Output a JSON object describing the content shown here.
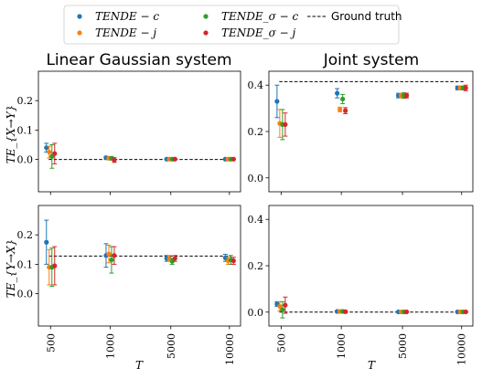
{
  "legend": {
    "entries": [
      {
        "label": "TENDE − c",
        "color": "#1f77b4",
        "marker": "dot"
      },
      {
        "label": "TENDE − j",
        "color": "#ff7f0e",
        "marker": "dot"
      },
      {
        "label": "TENDE_σ − c",
        "color": "#2ca02c",
        "marker": "dot"
      },
      {
        "label": "TENDE_σ − j",
        "color": "#d62728",
        "marker": "dot"
      },
      {
        "label": "Ground truth",
        "color": "#000000",
        "marker": "dashed-line"
      }
    ]
  },
  "xlabel": "T",
  "chart_data": [
    {
      "type": "scatter",
      "title": "Linear Gaussian system",
      "ylabel": "TE_{X→Y}",
      "categories": [
        "500",
        "1000",
        "5000",
        "10000"
      ],
      "ylim": [
        -0.11,
        0.3
      ],
      "yticks": [
        0.0,
        0.1,
        0.2
      ],
      "ground_truth": 0.0,
      "series": [
        {
          "name": "TENDE − c",
          "values": [
            0.04,
            0.006,
            0.001,
            0.001
          ],
          "err": [
            0.015,
            0.004,
            0.002,
            0.002
          ]
        },
        {
          "name": "TENDE − j",
          "values": [
            0.025,
            0.004,
            0.001,
            0.001
          ],
          "err": [
            0.02,
            0.004,
            0.002,
            0.002
          ]
        },
        {
          "name": "TENDE_σ − c",
          "values": [
            0.01,
            0.004,
            0.001,
            0.001
          ],
          "err": [
            0.04,
            0.006,
            0.002,
            0.002
          ]
        },
        {
          "name": "TENDE_σ − j",
          "values": [
            0.02,
            -0.002,
            0.001,
            0.001
          ],
          "err": [
            0.035,
            0.008,
            0.002,
            0.002
          ]
        }
      ]
    },
    {
      "type": "scatter",
      "title": "Joint system",
      "ylabel": "",
      "categories": [
        "500",
        "1000",
        "5000",
        "10000"
      ],
      "ylim": [
        -0.06,
        0.46
      ],
      "yticks": [
        0.0,
        0.2,
        0.4
      ],
      "ground_truth": 0.415,
      "series": [
        {
          "name": "TENDE − c",
          "values": [
            0.33,
            0.365,
            0.355,
            0.388
          ],
          "err": [
            0.07,
            0.02,
            0.01,
            0.008
          ]
        },
        {
          "name": "TENDE − j",
          "values": [
            0.235,
            0.295,
            0.355,
            0.388
          ],
          "err": [
            0.06,
            0.01,
            0.01,
            0.008
          ]
        },
        {
          "name": "TENDE_σ − c",
          "values": [
            0.23,
            0.34,
            0.355,
            0.388
          ],
          "err": [
            0.065,
            0.02,
            0.012,
            0.008
          ]
        },
        {
          "name": "TENDE_σ − j",
          "values": [
            0.23,
            0.29,
            0.355,
            0.388
          ],
          "err": [
            0.05,
            0.013,
            0.01,
            0.012
          ]
        }
      ]
    },
    {
      "type": "scatter",
      "title": "",
      "ylabel": "TE_{Y→X}",
      "categories": [
        "500",
        "1000",
        "5000",
        "10000"
      ],
      "ylim": [
        -0.11,
        0.3
      ],
      "yticks": [
        0.0,
        0.1,
        0.2
      ],
      "ground_truth": 0.128,
      "series": [
        {
          "name": "TENDE − c",
          "values": [
            0.175,
            0.13,
            0.12,
            0.122
          ],
          "err": [
            0.075,
            0.04,
            0.01,
            0.012
          ]
        },
        {
          "name": "TENDE − j",
          "values": [
            0.09,
            0.135,
            0.12,
            0.112
          ],
          "err": [
            0.06,
            0.03,
            0.01,
            0.012
          ]
        },
        {
          "name": "TENDE_σ − c",
          "values": [
            0.09,
            0.115,
            0.11,
            0.115
          ],
          "err": [
            0.065,
            0.045,
            0.01,
            0.015
          ]
        },
        {
          "name": "TENDE_σ − j",
          "values": [
            0.095,
            0.13,
            0.12,
            0.112
          ],
          "err": [
            0.065,
            0.03,
            0.01,
            0.012
          ]
        }
      ]
    },
    {
      "type": "scatter",
      "title": "",
      "ylabel": "",
      "categories": [
        "500",
        "1000",
        "5000",
        "10000"
      ],
      "ylim": [
        -0.06,
        0.46
      ],
      "yticks": [
        0.0,
        0.2,
        0.4
      ],
      "ground_truth": 0.0,
      "series": [
        {
          "name": "TENDE − c",
          "values": [
            0.035,
            0.003,
            0.001,
            0.001
          ],
          "err": [
            0.01,
            0.004,
            0.002,
            0.002
          ]
        },
        {
          "name": "TENDE − j",
          "values": [
            0.025,
            0.003,
            0.001,
            0.001
          ],
          "err": [
            0.02,
            0.004,
            0.002,
            0.002
          ]
        },
        {
          "name": "TENDE_σ − c",
          "values": [
            0.01,
            0.003,
            0.001,
            0.001
          ],
          "err": [
            0.035,
            0.004,
            0.002,
            0.002
          ]
        },
        {
          "name": "TENDE_σ − j",
          "values": [
            0.03,
            0.002,
            0.001,
            0.001
          ],
          "err": [
            0.035,
            0.004,
            0.002,
            0.002
          ]
        }
      ]
    }
  ]
}
